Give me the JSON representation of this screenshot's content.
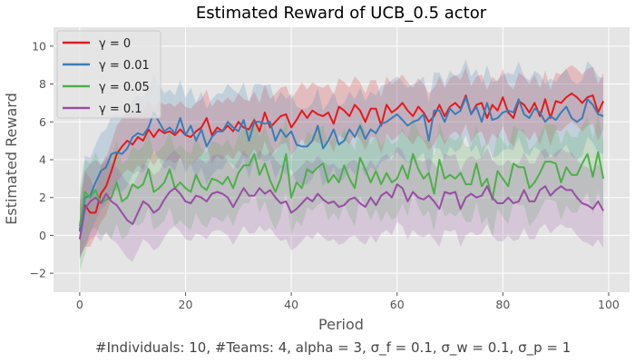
{
  "chart_data": {
    "type": "line",
    "title": "Estimated Reward of UCB_0.5 actor",
    "xlabel": "Period",
    "ylabel": "Estimated Reward",
    "footnote": "#Individuals: 10,  #Teams: 4,  alpha = 3,  σ_f = 0.1,  σ_w = 0.1,  σ_p = 1",
    "xlim": [
      -4.95,
      103.95
    ],
    "ylim": [
      -3,
      11
    ],
    "xticks": [
      0,
      20,
      40,
      60,
      80,
      100
    ],
    "yticks": [
      -2,
      0,
      2,
      4,
      6,
      8,
      10
    ],
    "xtick_labels": [
      "0",
      "20",
      "40",
      "60",
      "80",
      "100"
    ],
    "ytick_labels": [
      "−2",
      "0",
      "2",
      "4",
      "6",
      "8",
      "10"
    ],
    "grid": true,
    "background": "#e5e5e5",
    "legend_position": "top-left",
    "band_opacity": 0.2,
    "series": [
      {
        "name": "γ = 0",
        "color": "#e41a1c",
        "values": [
          0.3,
          1.6,
          1.2,
          1.2,
          2.2,
          2.6,
          3.4,
          4.3,
          4.7,
          5.0,
          4.8,
          5.2,
          5.0,
          5.6,
          5.2,
          5.6,
          5.4,
          5.5,
          5.3,
          5.6,
          5.3,
          5.2,
          5.5,
          5.7,
          6.2,
          5.3,
          5.7,
          5.5,
          5.8,
          5.5,
          6.0,
          5.7,
          5.6,
          6.1,
          5.5,
          6.5,
          5.7,
          6.0,
          6.3,
          6.4,
          5.7,
          6.1,
          6.6,
          6.2,
          6.6,
          6.4,
          6.3,
          6.5,
          5.9,
          6.8,
          6.6,
          6.3,
          6.9,
          6.6,
          6.0,
          6.7,
          6.7,
          5.8,
          6.9,
          6.5,
          6.7,
          7.0,
          6.6,
          6.3,
          6.8,
          6.5,
          6.0,
          6.3,
          6.9,
          6.3,
          6.8,
          7.0,
          6.7,
          7.4,
          6.4,
          6.9,
          7.0,
          6.2,
          6.9,
          6.6,
          7.3,
          6.5,
          6.2,
          7.1,
          6.9,
          6.5,
          7.0,
          6.3,
          7.2,
          6.2,
          7.1,
          7.0,
          7.3,
          7.5,
          7.3,
          7.0,
          7.3,
          7.4,
          6.5,
          7.1
        ],
        "lower": [
          -1.1,
          -0.6,
          -0.6,
          0.0,
          0.7,
          1.1,
          1.9,
          2.8,
          3.2,
          3.5,
          3.3,
          3.7,
          3.5,
          4.1,
          3.7,
          4.1,
          3.9,
          4.0,
          3.8,
          4.1,
          3.8,
          3.7,
          4.0,
          4.2,
          4.7,
          3.8,
          4.2,
          4.0,
          4.3,
          4.0,
          4.5,
          4.2,
          4.1,
          4.6,
          4.0,
          5.0,
          4.2,
          4.5,
          4.8,
          4.9,
          4.2,
          4.6,
          5.1,
          4.7,
          5.1,
          4.9,
          4.8,
          5.0,
          4.4,
          5.3,
          5.1,
          4.8,
          5.4,
          5.1,
          4.5,
          5.2,
          5.2,
          4.3,
          5.4,
          5.0,
          5.2,
          5.5,
          5.1,
          4.8,
          5.3,
          5.0,
          4.5,
          4.8,
          5.4,
          4.8,
          5.3,
          5.5,
          5.2,
          5.9,
          4.9,
          5.4,
          5.5,
          4.7,
          5.4,
          5.1,
          5.8,
          5.0,
          4.7,
          5.6,
          5.4,
          5.0,
          5.5,
          4.8,
          5.7,
          4.7,
          5.6,
          5.5,
          5.8,
          6.0,
          5.8,
          5.5,
          5.8,
          5.9,
          5.0,
          5.6
        ],
        "upper": [
          1.7,
          3.4,
          3.0,
          2.4,
          3.7,
          4.1,
          4.9,
          5.8,
          6.2,
          6.5,
          6.3,
          6.7,
          6.5,
          7.1,
          6.7,
          7.1,
          6.9,
          7.0,
          6.8,
          7.1,
          6.8,
          6.7,
          7.0,
          7.2,
          7.7,
          6.8,
          7.2,
          7.0,
          7.3,
          7.0,
          7.5,
          7.2,
          7.1,
          7.6,
          7.0,
          8.0,
          7.2,
          7.5,
          7.8,
          7.9,
          7.2,
          7.6,
          8.1,
          7.7,
          8.1,
          7.9,
          7.8,
          8.0,
          7.4,
          8.3,
          8.1,
          7.8,
          8.4,
          8.1,
          7.5,
          8.2,
          8.2,
          7.3,
          8.4,
          8.0,
          8.2,
          8.5,
          8.1,
          7.8,
          8.3,
          8.0,
          7.5,
          7.8,
          8.4,
          7.8,
          8.3,
          8.5,
          8.2,
          8.9,
          7.9,
          8.4,
          8.5,
          7.7,
          8.4,
          8.1,
          8.8,
          8.0,
          7.7,
          8.6,
          8.4,
          8.0,
          8.5,
          7.8,
          8.7,
          7.7,
          8.6,
          8.5,
          8.8,
          9.0,
          8.8,
          8.5,
          8.8,
          8.9,
          8.0,
          8.6
        ]
      },
      {
        "name": "γ = 0.01",
        "color": "#377eb8",
        "values": [
          0.2,
          2.0,
          2.1,
          2.8,
          3.4,
          3.6,
          4.3,
          4.4,
          4.3,
          4.6,
          5.2,
          5.4,
          5.3,
          5.7,
          6.5,
          6.0,
          5.5,
          5.7,
          5.4,
          6.2,
          5.3,
          5.8,
          5.0,
          5.6,
          4.7,
          5.2,
          5.5,
          5.5,
          6.0,
          5.7,
          5.5,
          6.1,
          5.0,
          6.0,
          6.0,
          5.9,
          6.0,
          5.0,
          5.6,
          5.2,
          5.5,
          4.8,
          4.7,
          4.7,
          5.0,
          5.8,
          4.6,
          5.0,
          5.6,
          4.8,
          5.0,
          5.6,
          5.2,
          5.8,
          5.1,
          5.6,
          5.4,
          5.9,
          6.0,
          6.2,
          6.4,
          6.1,
          5.8,
          6.0,
          6.1,
          6.4,
          5.0,
          6.6,
          6.6,
          6.0,
          6.7,
          6.4,
          6.6,
          7.3,
          6.4,
          6.8,
          6.0,
          7.0,
          6.1,
          6.2,
          6.5,
          6.6,
          6.5,
          7.2,
          6.4,
          6.2,
          6.7,
          6.5,
          6.0,
          6.3,
          6.1,
          6.5,
          6.8,
          6.2,
          6.0,
          6.2,
          7.2,
          6.9,
          6.4,
          6.3
        ],
        "lower": [
          -1.3,
          -0.5,
          0.1,
          0.8,
          1.4,
          1.6,
          2.3,
          2.4,
          2.3,
          2.6,
          3.2,
          3.4,
          3.3,
          3.7,
          4.5,
          4.0,
          3.5,
          3.7,
          3.4,
          4.2,
          3.3,
          3.8,
          3.0,
          3.6,
          2.7,
          3.2,
          3.5,
          3.5,
          4.0,
          3.7,
          3.5,
          4.1,
          3.0,
          4.0,
          4.0,
          3.9,
          4.0,
          3.0,
          3.6,
          3.2,
          3.5,
          2.8,
          2.7,
          2.7,
          3.0,
          3.8,
          2.6,
          3.0,
          3.6,
          2.8,
          3.0,
          3.6,
          3.2,
          3.8,
          3.1,
          3.6,
          3.4,
          3.9,
          4.0,
          4.2,
          4.4,
          4.1,
          3.8,
          4.0,
          4.1,
          4.4,
          3.0,
          4.6,
          4.6,
          4.0,
          4.7,
          4.4,
          4.6,
          5.3,
          4.4,
          4.8,
          4.0,
          5.0,
          4.1,
          4.2,
          4.5,
          4.6,
          4.5,
          5.2,
          4.4,
          4.2,
          4.7,
          4.5,
          4.0,
          4.3,
          4.1,
          4.5,
          4.8,
          4.2,
          4.0,
          4.2,
          5.2,
          4.9,
          4.4,
          4.3
        ],
        "upper": [
          1.8,
          4.2,
          4.1,
          4.8,
          5.4,
          5.6,
          6.3,
          6.4,
          6.3,
          6.6,
          7.2,
          7.4,
          7.3,
          7.7,
          8.5,
          8.0,
          7.5,
          7.7,
          7.4,
          8.2,
          7.3,
          7.8,
          7.0,
          7.6,
          6.7,
          7.2,
          7.5,
          7.5,
          8.0,
          7.7,
          7.5,
          8.1,
          7.0,
          8.0,
          8.0,
          7.9,
          8.0,
          7.0,
          7.6,
          7.2,
          7.5,
          6.8,
          6.7,
          6.7,
          7.0,
          7.8,
          6.6,
          7.0,
          7.6,
          6.8,
          7.0,
          7.6,
          7.2,
          7.8,
          7.1,
          7.6,
          7.4,
          7.9,
          8.0,
          8.2,
          8.4,
          8.1,
          7.8,
          8.0,
          8.1,
          8.4,
          7.0,
          8.6,
          8.6,
          8.0,
          8.7,
          8.4,
          8.6,
          9.3,
          8.4,
          8.8,
          8.0,
          9.0,
          8.1,
          8.2,
          8.5,
          8.6,
          8.5,
          9.2,
          8.4,
          8.2,
          8.7,
          8.5,
          8.0,
          8.3,
          8.1,
          8.5,
          8.8,
          8.2,
          8.0,
          8.2,
          9.2,
          8.9,
          8.4,
          8.3
        ]
      },
      {
        "name": "γ = 0.05",
        "color": "#4daf4a",
        "values": [
          0.5,
          2.3,
          2.0,
          2.4,
          1.7,
          1.9,
          2.0,
          2.8,
          1.8,
          2.0,
          2.7,
          2.5,
          2.7,
          3.5,
          2.3,
          2.5,
          2.8,
          3.5,
          2.5,
          2.8,
          2.5,
          2.3,
          3.2,
          2.6,
          2.4,
          3.0,
          2.9,
          2.7,
          3.1,
          2.5,
          3.3,
          3.7,
          3.7,
          4.3,
          3.2,
          3.8,
          2.9,
          2.3,
          3.0,
          4.3,
          2.0,
          2.8,
          2.5,
          3.5,
          3.3,
          3.6,
          3.8,
          2.8,
          3.2,
          2.8,
          3.7,
          3.0,
          2.5,
          4.1,
          3.5,
          2.8,
          3.4,
          2.7,
          3.3,
          2.8,
          3.0,
          3.7,
          3.0,
          4.3,
          3.5,
          3.0,
          3.3,
          2.2,
          4.0,
          3.0,
          3.2,
          3.0,
          3.3,
          2.7,
          2.7,
          3.8,
          2.6,
          3.0,
          1.9,
          3.4,
          3.0,
          2.6,
          3.8,
          3.6,
          3.6,
          2.5,
          2.8,
          3.3,
          3.9,
          3.9,
          3.8,
          2.8,
          3.6,
          3.2,
          3.2,
          3.8,
          4.3,
          3.1,
          4.4,
          3.0
        ],
        "lower": [
          -1.9,
          -1.0,
          0.3,
          0.4,
          0.0,
          0.1,
          -0.2,
          0.6,
          -0.2,
          0.0,
          0.7,
          0.5,
          0.7,
          1.5,
          0.3,
          0.5,
          0.8,
          1.5,
          0.5,
          0.8,
          0.5,
          0.3,
          1.2,
          0.6,
          0.4,
          1.0,
          0.9,
          0.7,
          1.1,
          0.5,
          1.3,
          1.7,
          1.7,
          2.3,
          1.2,
          1.8,
          0.9,
          0.3,
          1.0,
          2.3,
          0.0,
          0.8,
          0.5,
          1.5,
          1.3,
          1.6,
          1.8,
          0.8,
          1.2,
          0.8,
          1.7,
          1.0,
          0.5,
          2.1,
          1.5,
          0.8,
          1.4,
          0.7,
          1.3,
          0.8,
          1.0,
          1.7,
          1.0,
          2.3,
          1.5,
          1.0,
          1.3,
          0.2,
          2.0,
          1.0,
          1.2,
          1.0,
          1.3,
          0.7,
          0.7,
          1.8,
          0.6,
          1.0,
          -0.1,
          1.4,
          1.0,
          0.6,
          1.8,
          1.6,
          1.6,
          0.5,
          0.8,
          1.3,
          1.9,
          1.9,
          1.8,
          0.8,
          1.6,
          1.2,
          1.2,
          1.8,
          2.3,
          1.1,
          2.4,
          1.0
        ],
        "upper": [
          2.5,
          4.0,
          3.8,
          4.4,
          3.7,
          3.9,
          4.2,
          5.0,
          3.8,
          4.0,
          4.7,
          4.5,
          4.7,
          5.5,
          4.3,
          4.5,
          4.8,
          5.5,
          4.5,
          4.8,
          4.5,
          4.3,
          5.2,
          4.6,
          4.4,
          5.0,
          4.9,
          4.7,
          5.1,
          4.5,
          5.3,
          5.7,
          5.7,
          6.3,
          5.2,
          5.8,
          4.9,
          4.3,
          5.0,
          6.3,
          4.0,
          4.8,
          4.5,
          5.5,
          5.3,
          5.6,
          5.8,
          4.8,
          5.2,
          4.8,
          5.7,
          5.0,
          4.5,
          6.1,
          5.5,
          4.8,
          5.4,
          4.7,
          5.3,
          4.8,
          5.0,
          5.7,
          5.0,
          6.3,
          5.5,
          5.0,
          5.3,
          4.2,
          6.0,
          5.0,
          5.2,
          5.0,
          5.3,
          4.7,
          4.7,
          5.8,
          4.6,
          5.0,
          3.9,
          5.4,
          5.0,
          4.6,
          5.8,
          5.6,
          5.6,
          4.5,
          4.8,
          5.3,
          5.9,
          5.9,
          5.8,
          4.8,
          5.6,
          5.2,
          5.2,
          5.8,
          6.3,
          5.1,
          6.4,
          5.0
        ]
      },
      {
        "name": "γ = 0.1",
        "color": "#984ea3",
        "values": [
          -0.2,
          1.4,
          1.8,
          2.0,
          1.7,
          2.2,
          1.8,
          1.6,
          1.2,
          0.8,
          0.6,
          1.2,
          1.8,
          1.6,
          1.2,
          1.4,
          1.9,
          2.3,
          2.5,
          2.2,
          1.8,
          1.7,
          2.1,
          2.0,
          1.8,
          2.2,
          2.3,
          2.2,
          2.0,
          1.5,
          2.0,
          2.5,
          2.1,
          2.1,
          2.5,
          2.2,
          2.4,
          2.0,
          1.7,
          1.8,
          1.2,
          1.4,
          1.7,
          2.0,
          1.8,
          2.2,
          1.9,
          1.7,
          1.8,
          1.5,
          1.6,
          1.9,
          2.0,
          1.7,
          1.5,
          2.0,
          1.6,
          2.1,
          2.3,
          2.0,
          2.7,
          2.5,
          1.8,
          2.3,
          2.0,
          1.9,
          2.1,
          1.8,
          1.4,
          2.3,
          2.2,
          2.3,
          1.4,
          2.0,
          2.2,
          2.0,
          2.1,
          2.6,
          2.0,
          1.7,
          1.7,
          2.0,
          1.7,
          1.8,
          2.4,
          1.8,
          1.8,
          2.4,
          2.6,
          2.1,
          2.4,
          2.6,
          2.4,
          2.4,
          2.0,
          1.7,
          1.6,
          1.4,
          1.8,
          1.3
        ],
        "lower": [
          -1.2,
          -0.6,
          -0.2,
          0.0,
          -0.3,
          0.2,
          -0.2,
          -0.4,
          -0.8,
          -1.2,
          -1.4,
          -0.8,
          -0.2,
          -0.4,
          -0.8,
          -0.6,
          -0.1,
          0.3,
          0.5,
          0.2,
          -0.2,
          -0.3,
          0.1,
          0.0,
          -0.2,
          0.2,
          0.3,
          0.2,
          0.0,
          -0.5,
          0.0,
          0.5,
          0.1,
          0.1,
          0.5,
          0.2,
          0.4,
          0.0,
          -0.3,
          -0.2,
          -0.8,
          -0.6,
          -0.3,
          0.0,
          -0.2,
          0.2,
          -0.1,
          -0.3,
          -0.2,
          -0.5,
          -0.4,
          -0.1,
          0.0,
          -0.3,
          -0.5,
          0.0,
          -0.4,
          0.1,
          0.3,
          0.0,
          0.7,
          0.5,
          -0.2,
          0.3,
          0.0,
          -0.1,
          0.1,
          -0.2,
          -0.6,
          0.3,
          0.2,
          0.3,
          -0.6,
          0.0,
          0.2,
          0.0,
          0.1,
          0.6,
          0.0,
          -0.3,
          -0.3,
          0.0,
          -0.3,
          -0.2,
          0.4,
          -0.2,
          -0.2,
          0.4,
          0.6,
          0.1,
          0.4,
          0.6,
          0.4,
          0.4,
          0.0,
          -0.3,
          -0.4,
          -0.6,
          -0.2,
          -0.7
        ],
        "upper": [
          1.4,
          3.4,
          3.8,
          4.0,
          3.7,
          4.2,
          3.8,
          3.6,
          3.2,
          2.8,
          2.6,
          3.2,
          3.8,
          3.6,
          3.2,
          3.4,
          3.9,
          4.3,
          4.5,
          4.2,
          3.8,
          3.7,
          4.1,
          4.0,
          3.8,
          4.2,
          4.3,
          4.2,
          4.0,
          3.5,
          4.0,
          4.5,
          4.1,
          4.1,
          4.5,
          4.2,
          4.4,
          4.0,
          3.7,
          3.8,
          3.2,
          3.4,
          3.7,
          4.0,
          3.8,
          4.2,
          3.9,
          3.7,
          3.8,
          3.5,
          3.6,
          3.9,
          4.0,
          3.7,
          3.5,
          4.0,
          3.6,
          4.1,
          4.3,
          4.0,
          4.7,
          4.5,
          3.8,
          4.3,
          4.0,
          3.9,
          4.1,
          3.8,
          3.4,
          4.3,
          4.2,
          4.3,
          3.4,
          4.0,
          4.2,
          4.0,
          4.1,
          4.6,
          4.0,
          3.7,
          3.7,
          4.0,
          3.7,
          3.8,
          4.4,
          3.8,
          3.8,
          4.4,
          4.6,
          4.1,
          4.4,
          4.6,
          4.4,
          4.4,
          4.0,
          3.7,
          3.6,
          3.4,
          3.8,
          3.3
        ]
      }
    ]
  }
}
